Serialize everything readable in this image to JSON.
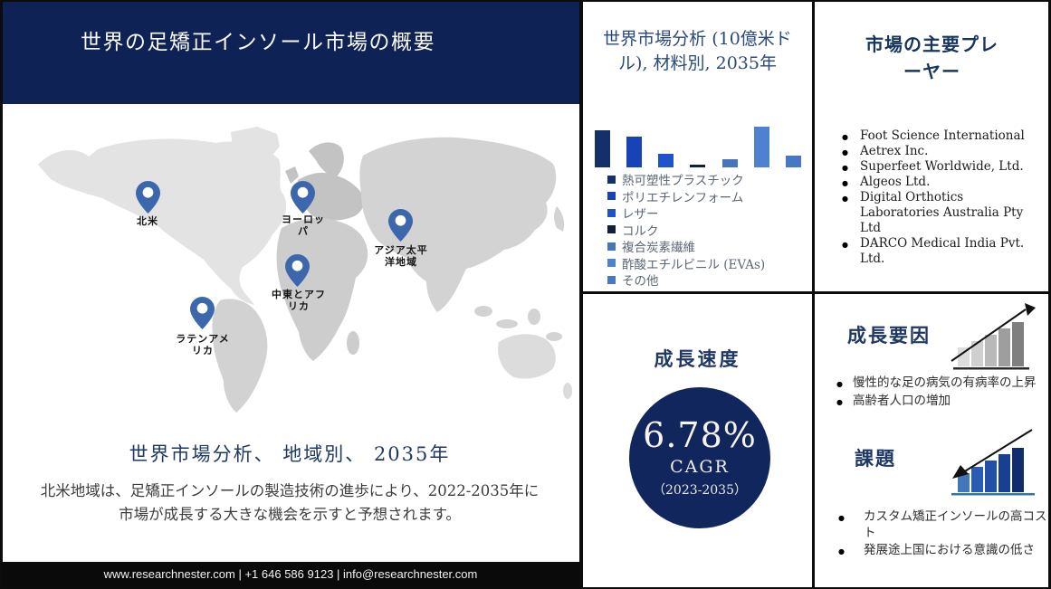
{
  "colors": {
    "header_navy": "#0e2256",
    "accent_blue": "#1f3864",
    "circle_navy": "#12265e",
    "pin_blue": "#3c67ac",
    "footer_black": "#0a0a0a",
    "challenge_underline": "#2e74b5"
  },
  "header": {
    "title": "世界の足矯正インソール市場の概要"
  },
  "map": {
    "regions": [
      {
        "label": "北米"
      },
      {
        "label": "ヨーロッパ"
      },
      {
        "label": "アジア太平洋地域"
      },
      {
        "label": "中東とアフリカ"
      },
      {
        "label": "ラテンアメリカ"
      }
    ]
  },
  "left": {
    "subtitle": "世界市場分析、 地域別、 2035年",
    "description": "北米地域は、足矯正インソールの製造技術の進歩により、2022-2035年に市場が成長する大きな機会を示すと予想されます。"
  },
  "chart_data": {
    "type": "bar",
    "title": "世界市場分析 (10億米ドル), 材料別, 2035年",
    "categories": [
      "熱可塑性プラスチック",
      "ポリエチレンフォーム",
      "レザー",
      "コルク",
      "複合炭素繊維",
      "酢酸エチルビニル (EVAs)",
      "その他"
    ],
    "values": [
      4.0,
      3.3,
      1.5,
      0.3,
      0.9,
      4.4,
      1.3
    ],
    "colors": [
      "#13306b",
      "#1843b5",
      "#2052cb",
      "#101f3c",
      "#4674bd",
      "#4f81d1",
      "#4678c6"
    ],
    "xlabel": "",
    "ylabel": "10億米ドル",
    "ylim": [
      0,
      4.5
    ],
    "grid": false,
    "legend_position": "bottom",
    "axes_hidden": true
  },
  "players": {
    "title": "市場の主要プレーヤー",
    "items": [
      "Foot Science International",
      "Aetrex Inc.",
      "Superfeet Worldwide, Ltd.",
      "Algeos Ltd.",
      "Digital Orthotics Laboratories Australia Pty Ltd",
      "DARCO Medical India Pvt. Ltd."
    ]
  },
  "growth_rate": {
    "title": "成長速度",
    "value": "6.78%",
    "label": "CAGR",
    "period": "（2023-2035）"
  },
  "growth_factors": {
    "title": "成長要因",
    "items": [
      "慢性的な足の病気の有病率の上昇",
      "高齢者人口の増加"
    ]
  },
  "challenges": {
    "title": "課題",
    "items": [
      "カスタム矯正インソールの高コスト",
      "発展途上国における意識の低さ"
    ]
  },
  "footer": {
    "text": "www.researchnester.com | +1 646 586 9123 | info@researchnester.com"
  }
}
